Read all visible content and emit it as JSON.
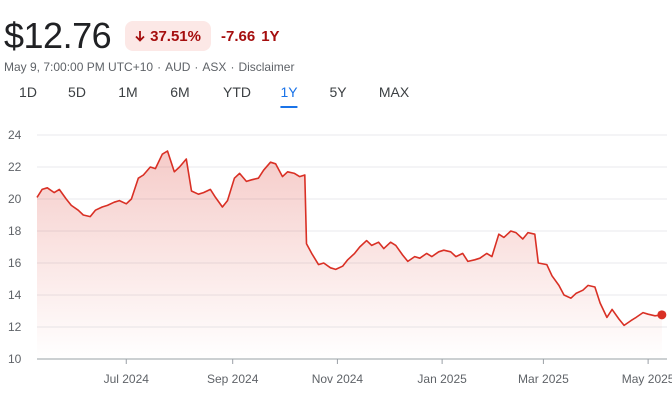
{
  "header": {
    "price": "$12.76",
    "percent_change": "37.51%",
    "percent_direction": "down",
    "abs_change": "-7.66",
    "period": "1Y"
  },
  "meta": {
    "timestamp": "May 9, 7:00:00 PM UTC+10",
    "currency": "AUD",
    "exchange": "ASX",
    "disclaimer": "Disclaimer"
  },
  "ranges": [
    "1D",
    "5D",
    "1M",
    "6M",
    "YTD",
    "1Y",
    "5Y",
    "MAX"
  ],
  "active_range": "1Y",
  "colors": {
    "negative": "#d93025",
    "negative_dark": "#a50e0e",
    "badge_bg": "#fce8e6",
    "active": "#1a73e8"
  },
  "chart_data": {
    "type": "area",
    "ylim": [
      10,
      24
    ],
    "yticks": [
      10,
      12,
      14,
      16,
      18,
      20,
      22,
      24
    ],
    "xlim": [
      "2024-05-10",
      "2025-05-12"
    ],
    "xticks": [
      {
        "date": "2024-07-01",
        "label": "Jul 2024"
      },
      {
        "date": "2024-09-01",
        "label": "Sep 2024"
      },
      {
        "date": "2024-11-01",
        "label": "Nov 2024"
      },
      {
        "date": "2025-01-01",
        "label": "Jan 2025"
      },
      {
        "date": "2025-03-01",
        "label": "Mar 2025"
      },
      {
        "date": "2025-05-01",
        "label": "May 2025"
      }
    ],
    "grid": true,
    "series": [
      {
        "points": [
          [
            "2024-05-10",
            20.1
          ],
          [
            "2024-05-13",
            20.6
          ],
          [
            "2024-05-16",
            20.7
          ],
          [
            "2024-05-20",
            20.4
          ],
          [
            "2024-05-23",
            20.6
          ],
          [
            "2024-05-27",
            20.0
          ],
          [
            "2024-05-30",
            19.6
          ],
          [
            "2024-06-03",
            19.3
          ],
          [
            "2024-06-06",
            19.0
          ],
          [
            "2024-06-10",
            18.9
          ],
          [
            "2024-06-13",
            19.3
          ],
          [
            "2024-06-17",
            19.5
          ],
          [
            "2024-06-20",
            19.6
          ],
          [
            "2024-06-24",
            19.8
          ],
          [
            "2024-06-27",
            19.9
          ],
          [
            "2024-07-01",
            19.7
          ],
          [
            "2024-07-04",
            20.0
          ],
          [
            "2024-07-08",
            21.3
          ],
          [
            "2024-07-11",
            21.5
          ],
          [
            "2024-07-15",
            22.0
          ],
          [
            "2024-07-18",
            21.9
          ],
          [
            "2024-07-22",
            22.8
          ],
          [
            "2024-07-25",
            23.0
          ],
          [
            "2024-07-29",
            21.7
          ],
          [
            "2024-08-01",
            22.0
          ],
          [
            "2024-08-05",
            22.5
          ],
          [
            "2024-08-08",
            20.5
          ],
          [
            "2024-08-12",
            20.3
          ],
          [
            "2024-08-15",
            20.4
          ],
          [
            "2024-08-19",
            20.6
          ],
          [
            "2024-08-22",
            20.1
          ],
          [
            "2024-08-26",
            19.5
          ],
          [
            "2024-08-29",
            19.9
          ],
          [
            "2024-09-02",
            21.3
          ],
          [
            "2024-09-05",
            21.6
          ],
          [
            "2024-09-09",
            21.1
          ],
          [
            "2024-09-12",
            21.2
          ],
          [
            "2024-09-16",
            21.3
          ],
          [
            "2024-09-19",
            21.8
          ],
          [
            "2024-09-23",
            22.3
          ],
          [
            "2024-09-26",
            22.2
          ],
          [
            "2024-09-30",
            21.4
          ],
          [
            "2024-10-03",
            21.7
          ],
          [
            "2024-10-07",
            21.6
          ],
          [
            "2024-10-10",
            21.4
          ],
          [
            "2024-10-13",
            21.5
          ],
          [
            "2024-10-14",
            17.2
          ],
          [
            "2024-10-17",
            16.6
          ],
          [
            "2024-10-21",
            15.9
          ],
          [
            "2024-10-24",
            16.0
          ],
          [
            "2024-10-28",
            15.7
          ],
          [
            "2024-10-31",
            15.6
          ],
          [
            "2024-11-04",
            15.8
          ],
          [
            "2024-11-07",
            16.2
          ],
          [
            "2024-11-11",
            16.6
          ],
          [
            "2024-11-14",
            17.0
          ],
          [
            "2024-11-18",
            17.4
          ],
          [
            "2024-11-21",
            17.1
          ],
          [
            "2024-11-25",
            17.3
          ],
          [
            "2024-11-28",
            16.9
          ],
          [
            "2024-12-02",
            17.3
          ],
          [
            "2024-12-05",
            17.1
          ],
          [
            "2024-12-09",
            16.5
          ],
          [
            "2024-12-12",
            16.1
          ],
          [
            "2024-12-16",
            16.4
          ],
          [
            "2024-12-19",
            16.3
          ],
          [
            "2024-12-23",
            16.6
          ],
          [
            "2024-12-26",
            16.4
          ],
          [
            "2024-12-30",
            16.7
          ],
          [
            "2025-01-02",
            16.8
          ],
          [
            "2025-01-06",
            16.7
          ],
          [
            "2025-01-09",
            16.4
          ],
          [
            "2025-01-13",
            16.6
          ],
          [
            "2025-01-16",
            16.1
          ],
          [
            "2025-01-20",
            16.2
          ],
          [
            "2025-01-23",
            16.3
          ],
          [
            "2025-01-27",
            16.6
          ],
          [
            "2025-01-30",
            16.4
          ],
          [
            "2025-02-03",
            17.8
          ],
          [
            "2025-02-06",
            17.6
          ],
          [
            "2025-02-10",
            18.0
          ],
          [
            "2025-02-13",
            17.9
          ],
          [
            "2025-02-17",
            17.5
          ],
          [
            "2025-02-20",
            17.9
          ],
          [
            "2025-02-24",
            17.8
          ],
          [
            "2025-02-26",
            16.0
          ],
          [
            "2025-03-03",
            15.9
          ],
          [
            "2025-03-06",
            15.2
          ],
          [
            "2025-03-10",
            14.6
          ],
          [
            "2025-03-13",
            14.0
          ],
          [
            "2025-03-17",
            13.8
          ],
          [
            "2025-03-20",
            14.1
          ],
          [
            "2025-03-24",
            14.3
          ],
          [
            "2025-03-27",
            14.6
          ],
          [
            "2025-03-31",
            14.5
          ],
          [
            "2025-04-03",
            13.5
          ],
          [
            "2025-04-07",
            12.6
          ],
          [
            "2025-04-10",
            13.1
          ],
          [
            "2025-04-14",
            12.5
          ],
          [
            "2025-04-17",
            12.1
          ],
          [
            "2025-04-21",
            12.4
          ],
          [
            "2025-04-24",
            12.6
          ],
          [
            "2025-04-28",
            12.9
          ],
          [
            "2025-05-01",
            12.8
          ],
          [
            "2025-05-05",
            12.7
          ],
          [
            "2025-05-09",
            12.76
          ]
        ]
      }
    ]
  }
}
